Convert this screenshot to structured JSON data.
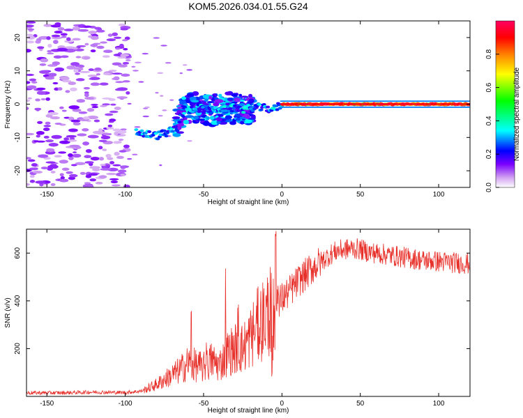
{
  "title": "KOM5.2026.034.01.55.G24",
  "colorbar": {
    "label": "Normalized spectral amplitude",
    "ticks": [
      "0.0",
      "0.2",
      "0.4",
      "0.6",
      "0.8"
    ],
    "tick_values": [
      0.0,
      0.2,
      0.4,
      0.6,
      0.8
    ],
    "colors": [
      "#ffffff",
      "#d0a0f0",
      "#7a00ff",
      "#0000ff",
      "#00ffff",
      "#00ff00",
      "#ffff00",
      "#ff8000",
      "#ff0000",
      "#ff0060"
    ]
  },
  "chart_data": [
    {
      "type": "heatmap",
      "title": "KOM5.2026.034.01.55.G24",
      "xlabel": "Height of straight line (km)",
      "ylabel": "Frequency (Hz)",
      "xlim": [
        -163,
        120
      ],
      "ylim": [
        -25,
        25
      ],
      "x_ticks": [
        -150,
        -100,
        -50,
        0,
        50,
        100
      ],
      "x_tick_labels": [
        "-150",
        "-100",
        "-50",
        "0",
        "50",
        "100"
      ],
      "y_ticks": [
        -20,
        -10,
        0,
        10,
        20
      ],
      "y_tick_labels": [
        "-20",
        "-10",
        "0",
        "10",
        "20"
      ],
      "features": [
        {
          "name": "noise",
          "x_range": [
            -163,
            -98
          ],
          "y_range": [
            -25,
            25
          ],
          "amplitude": 0.1
        },
        {
          "name": "track",
          "points": [
            [
              -92,
              -8.5
            ],
            [
              -80,
              -9.5
            ],
            [
              -70,
              -8
            ],
            [
              -62,
              -2
            ],
            [
              -55,
              -1
            ],
            [
              -45,
              -2
            ],
            [
              -35,
              -1
            ],
            [
              -25,
              -1.5
            ],
            [
              -15,
              -1
            ],
            [
              -5,
              -1.5
            ],
            [
              0,
              0
            ],
            [
              20,
              0
            ],
            [
              50,
              0
            ],
            [
              80,
              0
            ],
            [
              120,
              0
            ]
          ],
          "amplitude": 0.85
        }
      ]
    },
    {
      "type": "line",
      "xlabel": "Height of straight line (km)",
      "ylabel": "SNR (v/v)",
      "xlim": [
        -163,
        120
      ],
      "ylim": [
        0,
        700
      ],
      "x_ticks": [
        -150,
        -100,
        -50,
        0,
        50,
        100
      ],
      "x_tick_labels": [
        "-150",
        "-100",
        "-50",
        "0",
        "50",
        "100"
      ],
      "y_ticks": [
        200,
        400,
        600
      ],
      "y_tick_labels": [
        "200",
        "400",
        "600"
      ],
      "series": [
        {
          "name": "SNR",
          "color": "#e8302a",
          "x": [
            -163,
            -140,
            -120,
            -100,
            -90,
            -85,
            -80,
            -75,
            -70,
            -65,
            -60,
            -55,
            -50,
            -45,
            -40,
            -35,
            -30,
            -25,
            -20,
            -15,
            -10,
            -5,
            -2,
            0,
            5,
            10,
            15,
            20,
            25,
            30,
            35,
            40,
            45,
            50,
            55,
            60,
            65,
            70,
            75,
            80,
            90,
            100,
            110,
            120
          ],
          "values": [
            15,
            15,
            18,
            16,
            22,
            35,
            50,
            70,
            90,
            110,
            140,
            130,
            120,
            150,
            130,
            180,
            200,
            200,
            250,
            300,
            340,
            380,
            400,
            410,
            440,
            480,
            510,
            540,
            565,
            590,
            610,
            615,
            620,
            615,
            605,
            600,
            595,
            590,
            585,
            580,
            570,
            565,
            560,
            555
          ]
        }
      ],
      "spikes": [
        [
          -58,
          380
        ],
        [
          -48,
          230
        ],
        [
          -36,
          560
        ],
        [
          -28,
          400
        ],
        [
          -17,
          270
        ],
        [
          -4,
          700
        ],
        [
          -2,
          450
        ]
      ]
    }
  ]
}
